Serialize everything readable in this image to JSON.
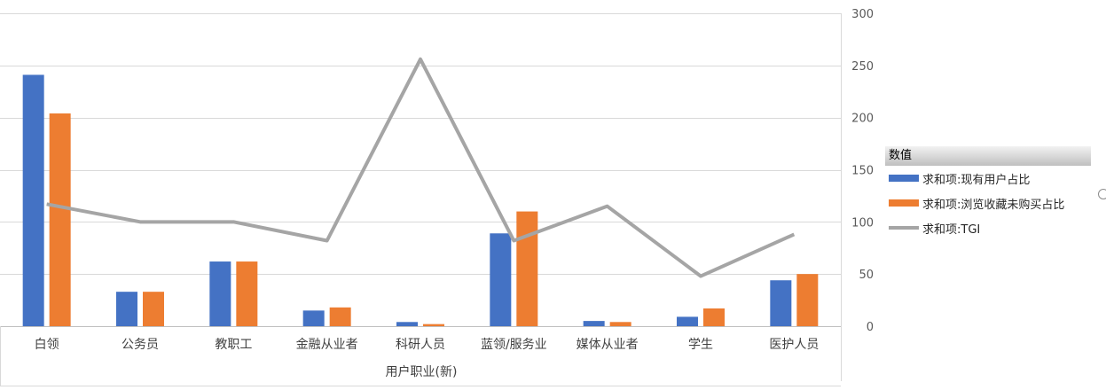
{
  "chart_data": {
    "type": "bar",
    "categories": [
      "白领",
      "公务员",
      "教职工",
      "金融从业者",
      "科研人员",
      "蓝领/服务业",
      "媒体从业者",
      "学生",
      "医护人员"
    ],
    "series": [
      {
        "name": "求和项:现有用户占比",
        "type": "bar",
        "axis": "right",
        "color": "#4472c4",
        "values": [
          241,
          33,
          62,
          15,
          4,
          89,
          5,
          9,
          44
        ]
      },
      {
        "name": "求和项:浏览收藏未购买占比",
        "type": "bar",
        "axis": "right",
        "color": "#ed7d31",
        "values": [
          204,
          33,
          62,
          18,
          2,
          110,
          4,
          17,
          50
        ]
      },
      {
        "name": "求和项:TGI",
        "type": "line",
        "axis": "right",
        "color": "#a5a5a5",
        "values": [
          117,
          100,
          100,
          82,
          256,
          82,
          115,
          48,
          88
        ]
      }
    ],
    "xlabel": "用户职业(新)",
    "ylim": [
      0,
      300
    ],
    "yticks": [
      0,
      50,
      100,
      150,
      200,
      250,
      300
    ],
    "grid": true,
    "legend": {
      "title": "数值",
      "position": "right"
    }
  }
}
